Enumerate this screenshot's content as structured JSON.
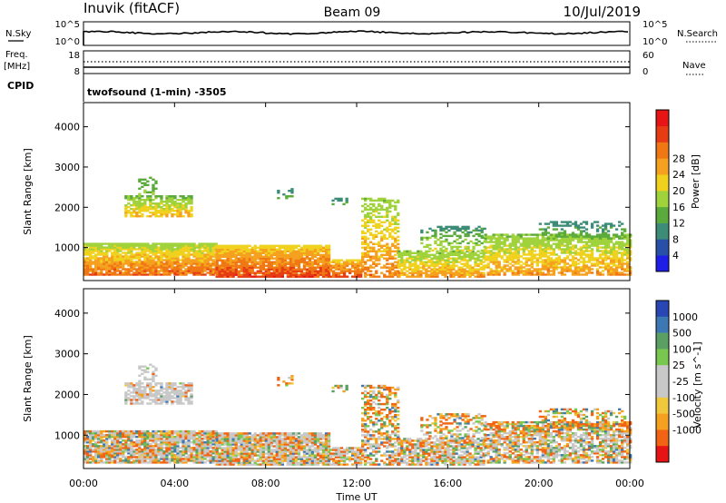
{
  "header": {
    "station": "Inuvik (fitACF)",
    "beam": "Beam 09",
    "date": "10/Jul/2019"
  },
  "top_panels": {
    "nsky_label": "N.Sky",
    "nsky_ticks": [
      "10^5",
      "10^0"
    ],
    "nsearch_label": "N.Search",
    "nsearch_ticks": [
      "10^5",
      "10^0"
    ],
    "freq_label": "Freq.",
    "freq_unit": "[MHz]",
    "freq_ticks": [
      "18",
      "8"
    ],
    "nave_label": "Nave",
    "nave_ticks": [
      "60",
      "0"
    ],
    "cpid_label": "CPID",
    "cpid_text": "twofsound (1-min) -3505"
  },
  "chart_data": [
    {
      "type": "heatmap",
      "name": "power",
      "ylabel": "Slant Range [km]",
      "yticks": [
        1000,
        2000,
        3000,
        4000
      ],
      "ylim": [
        180,
        4600
      ],
      "xlim_hours": [
        0,
        24
      ],
      "colorbar_label": "Power [dB]",
      "colorbar_ticks": [
        "4",
        "8",
        "12",
        "16",
        "20",
        "24",
        "28"
      ],
      "colorbar_colors": [
        "#1e1ee6",
        "#2850a8",
        "#3c8c78",
        "#5aaa3c",
        "#a0d23c",
        "#f0d21e",
        "#f5a01e",
        "#f07814",
        "#e63c14",
        "#e61414"
      ]
    },
    {
      "type": "heatmap",
      "name": "velocity",
      "ylabel": "Slant Range [km]",
      "yticks": [
        1000,
        2000,
        3000,
        4000
      ],
      "ylim": [
        180,
        4600
      ],
      "xlim_hours": [
        0,
        24
      ],
      "colorbar_label": "Velocity [m s^-1]",
      "colorbar_ticks": [
        "1000",
        "500",
        "100",
        "25",
        "-25",
        "-100",
        "-500",
        "-1000"
      ],
      "colorbar_colors": [
        "#2846b4",
        "#3c78b4",
        "#5aa064",
        "#78c850",
        "#c8c8c8",
        "#c8c8c8",
        "#f0c83c",
        "#f5a01e",
        "#f06414",
        "#e61414"
      ]
    }
  ],
  "x_axis": {
    "ticks": [
      "00:00",
      "04:00",
      "08:00",
      "12:00",
      "16:00",
      "20:00",
      "00:00"
    ],
    "label": "Time UT"
  },
  "colors": {
    "frame": "#000000",
    "ground_scatter": "#b4b4b4"
  }
}
